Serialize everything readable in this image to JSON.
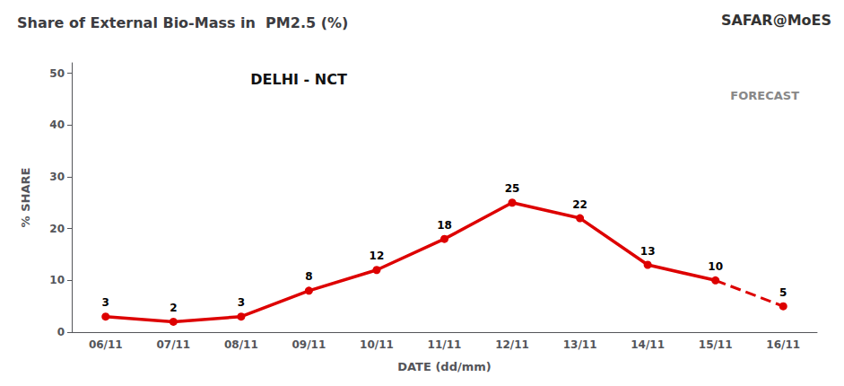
{
  "chart_data": {
    "type": "line",
    "title": "Share of External Bio-Mass in  PM2.5 (%)",
    "subtitle": "DELHI - NCT",
    "annotations": [
      {
        "text": "SAFAR@MoES"
      },
      {
        "text": "FORECAST"
      }
    ],
    "xlabel": "DATE (dd/mm)",
    "ylabel": "% SHARE",
    "categories": [
      "06/11",
      "07/11",
      "08/11",
      "09/11",
      "10/11",
      "11/11",
      "12/11",
      "13/11",
      "14/11",
      "15/11",
      "16/11"
    ],
    "values": [
      3,
      2,
      3,
      8,
      12,
      18,
      25,
      22,
      13,
      10,
      5
    ],
    "color": "#dd0000",
    "marker": "circle",
    "ylim": [
      0,
      52
    ],
    "yticks": [
      0,
      10,
      20,
      30,
      40,
      50
    ],
    "grid": false,
    "data_labels": true
  }
}
